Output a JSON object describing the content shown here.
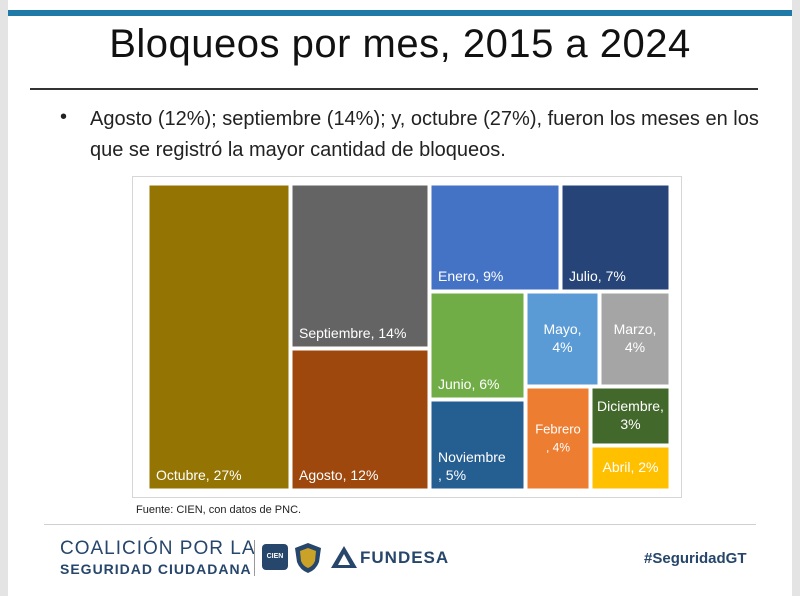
{
  "slide": {
    "title": "Bloqueos por mes, 2015 a 2024",
    "bullet": "Agosto (12%); septiembre (14%); y, octubre (27%), fueron los meses en los que se registró la mayor cantidad de bloqueos.",
    "source": "Fuente: CIEN, con datos de PNC.",
    "hashtag": "#SeguridadGT",
    "logos": {
      "coalicion_line1": "COALICIÓN POR LA",
      "coalicion_line2": "SEGURIDAD CIUDADANA",
      "cien": "CIEN",
      "fundesa": "FUNDESA"
    }
  },
  "colors": {
    "top_bar": "#1f7aa8",
    "brand_navy": "#27466b"
  },
  "chart_data": {
    "type": "treemap",
    "unit": "%",
    "items": [
      {
        "label": "Octubre",
        "text_line1": "Octubre, 27%",
        "text_line2": "",
        "value": 27,
        "color": "#947402"
      },
      {
        "label": "Septiembre",
        "text_line1": "Septiembre, 14%",
        "text_line2": "",
        "value": 14,
        "color": "#646464"
      },
      {
        "label": "Agosto",
        "text_line1": "Agosto, 12%",
        "text_line2": "",
        "value": 12,
        "color": "#9e480e"
      },
      {
        "label": "Enero",
        "text_line1": "Enero, 9%",
        "text_line2": "",
        "value": 9,
        "color": "#4472c4"
      },
      {
        "label": "Julio",
        "text_line1": "Julio, 7%",
        "text_line2": "",
        "value": 7,
        "color": "#264478"
      },
      {
        "label": "Junio",
        "text_line1": "Junio, 6%",
        "text_line2": "",
        "value": 6,
        "color": "#70ad47"
      },
      {
        "label": "Noviembre",
        "text_line1": "Noviembre",
        "text_line2": ", 5%",
        "value": 5,
        "color": "#255e91"
      },
      {
        "label": "Mayo",
        "text_line1": "Mayo,",
        "text_line2": "4%",
        "value": 4,
        "color": "#5b9bd5"
      },
      {
        "label": "Marzo",
        "text_line1": "Marzo,",
        "text_line2": "4%",
        "value": 4,
        "color": "#a5a5a5"
      },
      {
        "label": "Febrero",
        "text_line1": "Febrero",
        "text_line2": ", 4%",
        "value": 4,
        "color": "#ed7d31"
      },
      {
        "label": "Diciembre",
        "text_line1": "Diciembre,",
        "text_line2": "3%",
        "value": 3,
        "color": "#43682b"
      },
      {
        "label": "Abril",
        "text_line1": "Abril, 2%",
        "text_line2": "",
        "value": 2,
        "color": "#ffc000"
      }
    ]
  }
}
